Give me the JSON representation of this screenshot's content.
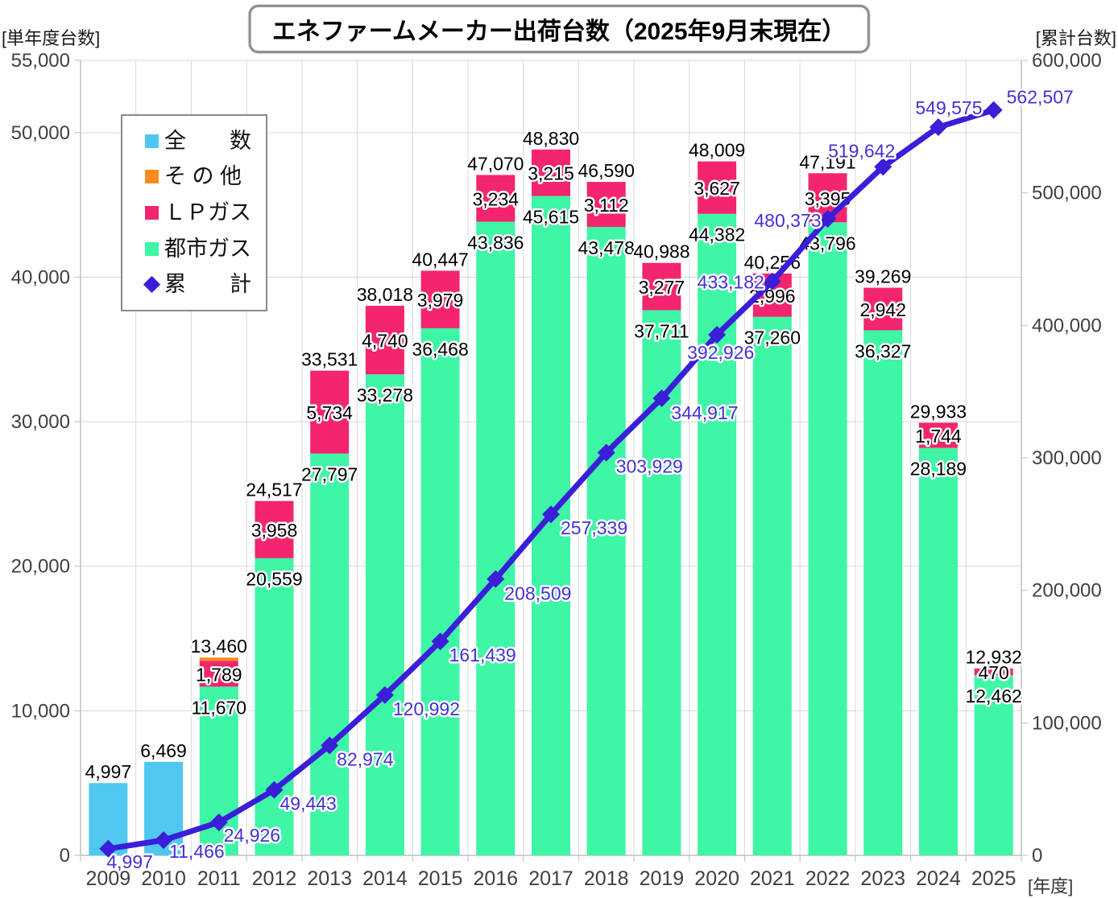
{
  "title": "エネファームメーカー出荷台数（2025年9月末現在）",
  "chart_data": {
    "type": "combo: stacked bar (left axis) + cumulative line (right axis)",
    "title": "エネファームメーカー出荷台数（2025年9月末現在）",
    "categories": [
      "2009",
      "2010",
      "2011",
      "2012",
      "2013",
      "2014",
      "2015",
      "2016",
      "2017",
      "2018",
      "2019",
      "2020",
      "2021",
      "2022",
      "2023",
      "2024",
      "2025"
    ],
    "series": [
      {
        "name": "全　　数",
        "key": "all",
        "type": "bar",
        "color": "#4FC7F0",
        "values": [
          4997,
          6469,
          0,
          0,
          0,
          0,
          0,
          0,
          0,
          0,
          0,
          0,
          0,
          0,
          0,
          0,
          0
        ]
      },
      {
        "name": "そ の 他",
        "key": "other",
        "type": "bar",
        "color": "#FF8A1E",
        "values": [
          0,
          0,
          1,
          0,
          0,
          0,
          0,
          0,
          0,
          0,
          0,
          0,
          0,
          0,
          0,
          0,
          0
        ]
      },
      {
        "name": "ＬＰガス",
        "key": "lp_gas",
        "type": "bar",
        "color": "#F2256E",
        "values": [
          0,
          0,
          1789,
          3958,
          5734,
          4740,
          3979,
          3234,
          3215,
          3112,
          3277,
          3627,
          2996,
          3395,
          2942,
          1744,
          470
        ]
      },
      {
        "name": "都市ガス",
        "key": "city_gas",
        "type": "bar",
        "color": "#3FF5A6",
        "values": [
          0,
          0,
          11670,
          20559,
          27797,
          33278,
          36468,
          43836,
          45615,
          43478,
          37711,
          44382,
          37260,
          43796,
          36327,
          28189,
          12462
        ]
      },
      {
        "name": "累　　計",
        "key": "cumulative",
        "type": "line",
        "color": "#3A1ED8",
        "values": [
          4997,
          11466,
          24926,
          49443,
          82974,
          120992,
          161439,
          208509,
          257339,
          303929,
          344917,
          392926,
          433182,
          480373,
          519642,
          549575,
          562507
        ]
      }
    ],
    "bar_totals": [
      4997,
      6469,
      13460,
      24517,
      33531,
      38018,
      40447,
      47070,
      48830,
      46590,
      40988,
      48009,
      40256,
      47191,
      39269,
      29933,
      12932
    ],
    "left_axis": {
      "label": "[単年度台数]",
      "min": 0,
      "max": 55000,
      "tick_values": [
        0,
        10000,
        20000,
        30000,
        40000,
        50000,
        55000
      ],
      "tick_labels": [
        "0",
        "10,000",
        "20,000",
        "30,000",
        "40,000",
        "50,000",
        "55,000"
      ]
    },
    "right_axis": {
      "label": "[累計台数]",
      "min": 0,
      "max": 600000,
      "tick_values": [
        0,
        100000,
        200000,
        300000,
        400000,
        500000,
        600000
      ],
      "tick_labels": [
        "0",
        "100,000",
        "200,000",
        "300,000",
        "400,000",
        "500,000",
        "600,000"
      ]
    },
    "x_axis": {
      "label": "[年度]"
    },
    "grid": "on",
    "legend_position": "top-left",
    "legend": [
      {
        "label": "全　　数",
        "color": "#4FC7F0",
        "marker": "square"
      },
      {
        "label": "そ の 他",
        "color": "#FF8A1E",
        "marker": "square"
      },
      {
        "label": "ＬＰガス",
        "color": "#F2256E",
        "marker": "square"
      },
      {
        "label": "都市ガス",
        "color": "#3FF5A6",
        "marker": "square"
      },
      {
        "label": "累　　計",
        "color": "#3A1ED8",
        "marker": "diamond"
      }
    ],
    "colors": {
      "all": "#4FC7F0",
      "other": "#FF8A1E",
      "lp_gas": "#F2256E",
      "city_gas": "#3FF5A6",
      "cumulative_line": "#3A1ED8",
      "cumulative_label": "#4430D6",
      "bar_label": "#000000",
      "axis_text": "#404040",
      "grid": "#D9D9D9",
      "axis_line": "#BFBFBF"
    }
  }
}
